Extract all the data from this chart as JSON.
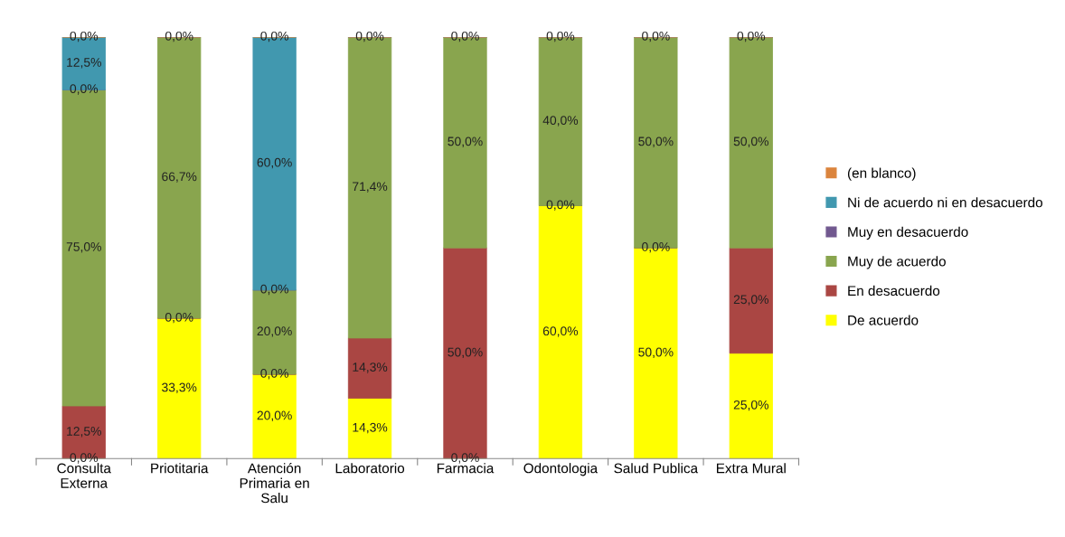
{
  "chart_data": {
    "type": "bar",
    "stacked": true,
    "legend": "right",
    "grid": false,
    "tick_labels": "x",
    "categories": [
      "Consulta\nExterna",
      "Priotitaria",
      "Atención\nPrimaria en\nSalu",
      "Laboratorio",
      "Farmacia",
      "Odontologia",
      "Salud Publica",
      "Extra Mural"
    ],
    "series": [
      {
        "name": "De acuerdo",
        "color": "#ffff00",
        "values": [
          0,
          33.3,
          20,
          14.3,
          0,
          60,
          50,
          25
        ],
        "value_labels": [
          "0,0%",
          "33,3%",
          "20,0%",
          "14,3%",
          "0,0%",
          "60,0%",
          "50,0%",
          "25,0%"
        ]
      },
      {
        "name": "En desacuerdo",
        "color": "#aa4643",
        "values": [
          12.5,
          0,
          0,
          14.3,
          50,
          0,
          0,
          25
        ],
        "value_labels": [
          "12,5%",
          "0,0%",
          "0,0%",
          "14,3%",
          "50,0%",
          "0,0%",
          "0,0%",
          "25,0%"
        ]
      },
      {
        "name": "Muy de acuerdo",
        "color": "#89a54e",
        "values": [
          75,
          66.7,
          20,
          71.4,
          50,
          40,
          50,
          50
        ],
        "value_labels": [
          "75,0%",
          "66,7%",
          "20,0%",
          "71,4%",
          "50,0%",
          "40,0%",
          "50,0%",
          "50,0%"
        ]
      },
      {
        "name": "Muy en desacuerdo",
        "color": "#71588f",
        "values": [
          0,
          0,
          0,
          0,
          0,
          0,
          0,
          0
        ],
        "value_labels": [
          "0,0%",
          null,
          "0,0%",
          null,
          null,
          null,
          null,
          null
        ]
      },
      {
        "name": "Ni de acuerdo ni en desacuerdo",
        "color": "#4198af",
        "values": [
          12.5,
          0,
          60,
          0,
          0,
          0,
          0,
          0
        ],
        "value_labels": [
          "12,5%",
          null,
          "60,0%",
          null,
          null,
          null,
          null,
          null
        ]
      },
      {
        "name": "(en blanco)",
        "color": "#db843d",
        "values": [
          0,
          0,
          0,
          0,
          0,
          0,
          0,
          0
        ],
        "value_labels": [
          "0,0%",
          "0,0%",
          "0,0%",
          "0,0%",
          "0,0%",
          "0,0%",
          "0,0%",
          "0,0%"
        ]
      }
    ]
  }
}
